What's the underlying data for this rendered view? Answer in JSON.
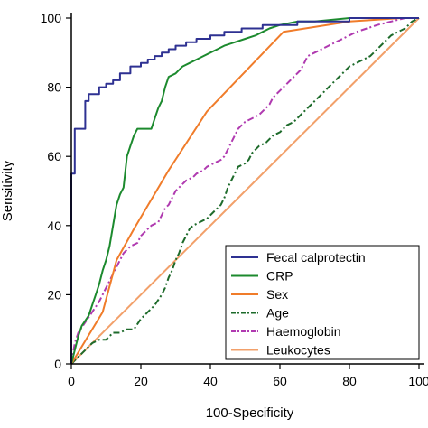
{
  "chart_data": {
    "type": "line",
    "xlabel": "100-Specificity",
    "ylabel": "Sensitivity",
    "xlim": [
      0,
      100
    ],
    "ylim": [
      0,
      100
    ],
    "xticks": [
      "0",
      "20",
      "40",
      "60",
      "80",
      "100"
    ],
    "yticks": [
      "0",
      "20",
      "40",
      "60",
      "80",
      "100"
    ],
    "grid": false,
    "legend_position": "bottom-right",
    "series": [
      {
        "name": "Fecal calprotectin",
        "color": "#2e3192",
        "dash": "solid",
        "points": [
          [
            0,
            0
          ],
          [
            0,
            55
          ],
          [
            1,
            55
          ],
          [
            1,
            68
          ],
          [
            4,
            68
          ],
          [
            4,
            76
          ],
          [
            5,
            76
          ],
          [
            5,
            78
          ],
          [
            8,
            78
          ],
          [
            8,
            80
          ],
          [
            10,
            80
          ],
          [
            10,
            81
          ],
          [
            12,
            81
          ],
          [
            12,
            82
          ],
          [
            14,
            82
          ],
          [
            14,
            84
          ],
          [
            17,
            84
          ],
          [
            17,
            86
          ],
          [
            20,
            86
          ],
          [
            20,
            87
          ],
          [
            22,
            87
          ],
          [
            22,
            88
          ],
          [
            24,
            88
          ],
          [
            24,
            89
          ],
          [
            26,
            89
          ],
          [
            26,
            90
          ],
          [
            28,
            90
          ],
          [
            28,
            91
          ],
          [
            30,
            91
          ],
          [
            30,
            92
          ],
          [
            33,
            92
          ],
          [
            33,
            93
          ],
          [
            36,
            93
          ],
          [
            36,
            94
          ],
          [
            40,
            94
          ],
          [
            40,
            95
          ],
          [
            44,
            95
          ],
          [
            44,
            96
          ],
          [
            49,
            96
          ],
          [
            49,
            97
          ],
          [
            55,
            97
          ],
          [
            55,
            98
          ],
          [
            65,
            98
          ],
          [
            65,
            99
          ],
          [
            80,
            99
          ],
          [
            80,
            100
          ],
          [
            100,
            100
          ]
        ]
      },
      {
        "name": "CRP",
        "color": "#1c8a2e",
        "dash": "solid",
        "points": [
          [
            0,
            0
          ],
          [
            1,
            4
          ],
          [
            2,
            8
          ],
          [
            3,
            11
          ],
          [
            5,
            14
          ],
          [
            6,
            17
          ],
          [
            7,
            20
          ],
          [
            8,
            23
          ],
          [
            9,
            27
          ],
          [
            10,
            30
          ],
          [
            11,
            34
          ],
          [
            12,
            40
          ],
          [
            13,
            46
          ],
          [
            14,
            49
          ],
          [
            15,
            51
          ],
          [
            16,
            60
          ],
          [
            17,
            63
          ],
          [
            18,
            66
          ],
          [
            19,
            68
          ],
          [
            23,
            68
          ],
          [
            24,
            71
          ],
          [
            25,
            74
          ],
          [
            26,
            76
          ],
          [
            27,
            80
          ],
          [
            28,
            83
          ],
          [
            30,
            84
          ],
          [
            32,
            86
          ],
          [
            34,
            87
          ],
          [
            36,
            88
          ],
          [
            38,
            89
          ],
          [
            40,
            90
          ],
          [
            42,
            91
          ],
          [
            44,
            92
          ],
          [
            47,
            93
          ],
          [
            50,
            94
          ],
          [
            53,
            95
          ],
          [
            55,
            96
          ],
          [
            57,
            97
          ],
          [
            60,
            98
          ],
          [
            65,
            99
          ],
          [
            70,
            99
          ],
          [
            80,
            100
          ],
          [
            100,
            100
          ]
        ]
      },
      {
        "name": "Sex",
        "color": "#f07c2a",
        "dash": "solid",
        "points": [
          [
            0,
            0
          ],
          [
            9,
            15
          ],
          [
            13,
            30
          ],
          [
            18,
            39
          ],
          [
            28,
            56
          ],
          [
            39,
            73
          ],
          [
            61,
            96
          ],
          [
            80,
            99
          ],
          [
            95,
            100
          ],
          [
            100,
            100
          ]
        ]
      },
      {
        "name": "Age",
        "color": "#1e6b2b",
        "dash": "dashdot",
        "points": [
          [
            0,
            0
          ],
          [
            2,
            2
          ],
          [
            4,
            4
          ],
          [
            6,
            6
          ],
          [
            8,
            7
          ],
          [
            10,
            7
          ],
          [
            12,
            9
          ],
          [
            14,
            9
          ],
          [
            16,
            10
          ],
          [
            18,
            10
          ],
          [
            20,
            13
          ],
          [
            22,
            15
          ],
          [
            24,
            17
          ],
          [
            26,
            20
          ],
          [
            27,
            22
          ],
          [
            28,
            25
          ],
          [
            29,
            27
          ],
          [
            30,
            30
          ],
          [
            31,
            32
          ],
          [
            32,
            35
          ],
          [
            33,
            37
          ],
          [
            34,
            39
          ],
          [
            35,
            40
          ],
          [
            37,
            41
          ],
          [
            39,
            42
          ],
          [
            40,
            43
          ],
          [
            41,
            44
          ],
          [
            42,
            45
          ],
          [
            43,
            46
          ],
          [
            44,
            48
          ],
          [
            45,
            51
          ],
          [
            46,
            53
          ],
          [
            47,
            55
          ],
          [
            48,
            57
          ],
          [
            50,
            58
          ],
          [
            51,
            59
          ],
          [
            52,
            61
          ],
          [
            54,
            63
          ],
          [
            56,
            64
          ],
          [
            58,
            66
          ],
          [
            60,
            67
          ],
          [
            62,
            69
          ],
          [
            64,
            70
          ],
          [
            66,
            72
          ],
          [
            68,
            74
          ],
          [
            70,
            76
          ],
          [
            72,
            78
          ],
          [
            74,
            80
          ],
          [
            76,
            82
          ],
          [
            78,
            84
          ],
          [
            80,
            86
          ],
          [
            82,
            87
          ],
          [
            84,
            88
          ],
          [
            86,
            89
          ],
          [
            88,
            91
          ],
          [
            90,
            93
          ],
          [
            92,
            95
          ],
          [
            94,
            96
          ],
          [
            96,
            97
          ],
          [
            98,
            99
          ],
          [
            100,
            100
          ]
        ]
      },
      {
        "name": "Haemoglobin",
        "color": "#b03ab0",
        "dash": "dashdot",
        "points": [
          [
            0,
            0
          ],
          [
            1,
            6
          ],
          [
            2,
            9
          ],
          [
            4,
            12
          ],
          [
            6,
            15
          ],
          [
            8,
            18
          ],
          [
            10,
            22
          ],
          [
            12,
            26
          ],
          [
            14,
            30
          ],
          [
            15,
            32
          ],
          [
            17,
            34
          ],
          [
            19,
            35
          ],
          [
            20,
            37
          ],
          [
            22,
            39
          ],
          [
            23,
            40
          ],
          [
            25,
            41
          ],
          [
            26,
            43
          ],
          [
            27,
            45
          ],
          [
            28,
            46
          ],
          [
            29,
            48
          ],
          [
            30,
            50
          ],
          [
            31,
            51
          ],
          [
            32,
            52
          ],
          [
            33,
            53
          ],
          [
            35,
            54
          ],
          [
            36,
            55
          ],
          [
            38,
            56
          ],
          [
            39,
            57
          ],
          [
            41,
            58
          ],
          [
            43,
            59
          ],
          [
            44,
            60
          ],
          [
            45,
            62
          ],
          [
            46,
            64
          ],
          [
            47,
            66
          ],
          [
            48,
            68
          ],
          [
            49,
            69
          ],
          [
            50,
            70
          ],
          [
            52,
            71
          ],
          [
            54,
            72
          ],
          [
            56,
            74
          ],
          [
            57,
            75
          ],
          [
            58,
            77
          ],
          [
            60,
            79
          ],
          [
            62,
            81
          ],
          [
            64,
            83
          ],
          [
            66,
            85
          ],
          [
            67,
            87
          ],
          [
            68,
            89
          ],
          [
            70,
            90
          ],
          [
            72,
            91
          ],
          [
            74,
            92
          ],
          [
            76,
            93
          ],
          [
            78,
            94
          ],
          [
            80,
            95
          ],
          [
            82,
            96
          ],
          [
            85,
            97
          ],
          [
            88,
            98
          ],
          [
            92,
            99
          ],
          [
            96,
            100
          ],
          [
            100,
            100
          ]
        ]
      },
      {
        "name": "Leukocytes",
        "color": "#f2a06a",
        "dash": "solid",
        "points": [
          [
            0,
            0
          ],
          [
            100,
            100
          ]
        ]
      }
    ]
  }
}
